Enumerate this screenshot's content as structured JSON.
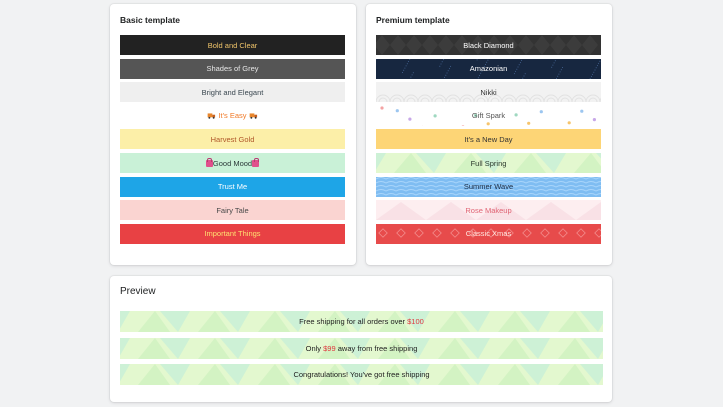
{
  "basic": {
    "title": "Basic template",
    "items": [
      {
        "label": "Bold and Clear",
        "bg": "#222222",
        "color": "#f0c46a"
      },
      {
        "label": "Shades of Grey",
        "bg": "#555555",
        "color": "#e8e8e8"
      },
      {
        "label": "Bright and Elegant",
        "bg": "#efefef",
        "color": "#3a4750"
      },
      {
        "label": "It's Easy",
        "bg": "#ffffff",
        "color": "#f07a28",
        "icon": "truck-icon"
      },
      {
        "label": "Harvest Gold",
        "bg": "#fcefa8",
        "color": "#b0572a"
      },
      {
        "label": "Good Mood",
        "bg": "#c9f1d7",
        "color": "#2d3a3a",
        "icon": "shopping-bag-icon"
      },
      {
        "label": "Trust Me",
        "bg": "#1ea5e7",
        "color": "#ffffff"
      },
      {
        "label": "Fairy Tale",
        "bg": "#fad4d1",
        "color": "#4a4a4a"
      },
      {
        "label": "Important Things",
        "bg": "#e84144",
        "color": "#ffe071"
      }
    ]
  },
  "premium": {
    "title": "Premium template",
    "items": [
      {
        "label": "Black Diamond",
        "bg": "#333333",
        "color": "#ffffff",
        "pattern": "diamond"
      },
      {
        "label": "Amazonian",
        "bg": "#172740",
        "color": "#ffffff",
        "pattern": "stars"
      },
      {
        "label": "Nikki",
        "bg": "#f2f2f2",
        "color": "#333333",
        "pattern": "waves-light"
      },
      {
        "label": "Gift Spark",
        "bg": "#ffffff",
        "color": "#555555",
        "pattern": "confetti"
      },
      {
        "label": "It's a New Day",
        "bg": "#fdd576",
        "color": "#333333",
        "pattern": "none"
      },
      {
        "label": "Full Spring",
        "bg": "#e3f8cf",
        "color": "#2d3a2d",
        "pattern": "geo-green"
      },
      {
        "label": "Summer Wave",
        "bg": "#7fbdf2",
        "color": "#1b2c44",
        "pattern": "waves-blue"
      },
      {
        "label": "Rose Makeup",
        "bg": "#fdeef0",
        "color": "#e06474",
        "pattern": "rose"
      },
      {
        "label": "Classic Xmas",
        "bg": "#e74b4b",
        "color": "#ffe7e0",
        "pattern": "xmas"
      }
    ]
  },
  "preview": {
    "title": "Preview",
    "messages": [
      {
        "before": "Free shipping for all orders over ",
        "highlight": "$100",
        "after": ""
      },
      {
        "before": "Only ",
        "highlight": "$99",
        "after": " away from free shipping"
      },
      {
        "before": "Congratulations! You've got free shipping",
        "highlight": "",
        "after": ""
      }
    ]
  }
}
